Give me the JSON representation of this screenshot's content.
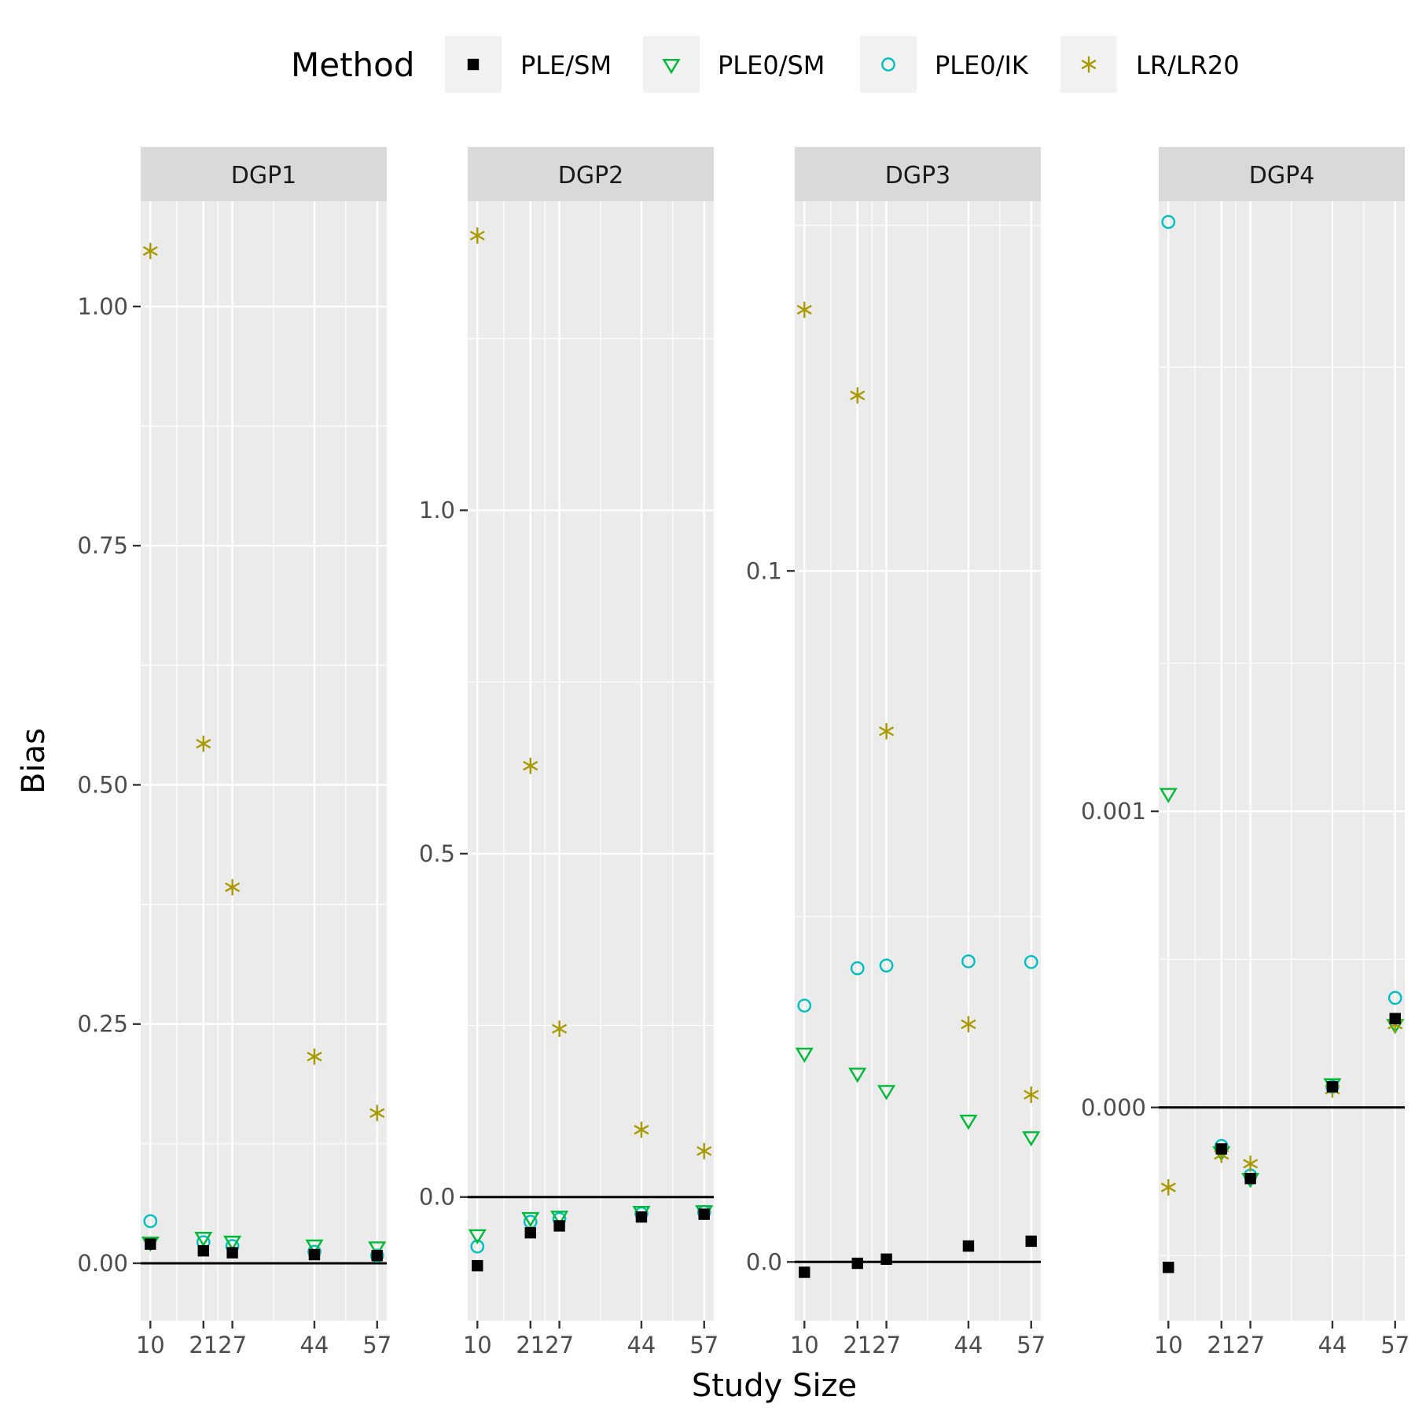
{
  "chart_data": {
    "type": "scatter",
    "xlabel": "Study Size",
    "ylabel": "Bias",
    "x_ticks": [
      10,
      21,
      27,
      44,
      57
    ],
    "x_tick_labels": [
      "10",
      "21",
      "27",
      "44",
      "57"
    ],
    "xlim": [
      8,
      59
    ],
    "reference_line_y": 0,
    "legend": {
      "title": "Method",
      "position": "top",
      "entries": [
        {
          "key": "ple_sm",
          "label": "PLE/SM",
          "shape": "square",
          "color": "#000000"
        },
        {
          "key": "ple0_sm",
          "label": "PLE0/SM",
          "shape": "triangle-down",
          "color": "#00BA38"
        },
        {
          "key": "ple0_ik",
          "label": "PLE0/IK",
          "shape": "circle",
          "color": "#00BFC4"
        },
        {
          "key": "lr_lr20",
          "label": "LR/LR20",
          "shape": "asterisk",
          "color": "#A89A00"
        }
      ]
    },
    "panels": [
      {
        "title": "DGP1",
        "ylim": [
          -0.06,
          1.11
        ],
        "y_ticks": [
          0,
          0.25,
          0.5,
          0.75,
          1
        ],
        "y_tick_labels": [
          "0.00",
          "0.25",
          "0.50",
          "0.75",
          "1.00"
        ],
        "series": {
          "ple_sm": [
            0.02,
            0.013,
            0.011,
            0.009,
            0.008
          ],
          "ple0_sm": [
            0.022,
            0.027,
            0.023,
            0.019,
            0.017
          ],
          "ple0_ik": [
            0.044,
            0.022,
            0.018,
            0.012,
            0.008
          ],
          "lr_lr20": [
            1.058,
            0.543,
            0.393,
            0.216,
            0.157
          ]
        }
      },
      {
        "title": "DGP2",
        "ylim": [
          -0.18,
          1.45
        ],
        "y_ticks": [
          0,
          0.5,
          1
        ],
        "y_tick_labels": [
          "0.0",
          "0.5",
          "1.0"
        ],
        "series": {
          "ple_sm": [
            -0.1,
            -0.052,
            -0.042,
            -0.029,
            -0.025
          ],
          "ple0_sm": [
            -0.055,
            -0.03,
            -0.028,
            -0.021,
            -0.02
          ],
          "ple0_ik": [
            -0.072,
            -0.036,
            -0.032,
            -0.024,
            -0.022
          ],
          "lr_lr20": [
            1.4,
            0.628,
            0.245,
            0.098,
            0.067
          ]
        }
      },
      {
        "title": "DGP3",
        "ylim": [
          -0.0085,
          0.1535
        ],
        "y_ticks": [
          0,
          0.1
        ],
        "y_tick_labels": [
          "0.0",
          "0.1"
        ],
        "series": {
          "ple_sm": [
            -0.0015,
            -0.0002,
            0.0004,
            0.0023,
            0.003
          ],
          "ple0_sm": [
            0.0302,
            0.0273,
            0.0248,
            0.0205,
            0.0181
          ],
          "ple0_ik": [
            0.0371,
            0.0425,
            0.0429,
            0.0435,
            0.0434
          ],
          "lr_lr20": [
            0.1378,
            0.1254,
            0.0768,
            0.0344,
            0.0242
          ]
        }
      },
      {
        "title": "DGP4",
        "ylim": [
          -0.00072,
          0.00306
        ],
        "y_ticks": [
          0,
          0.001
        ],
        "y_tick_labels": [
          "0.000",
          "0.001"
        ],
        "series": {
          "ple_sm": [
            -0.00054,
            -0.00014,
            -0.00024,
            7e-05,
            0.0003
          ],
          "ple0_sm": [
            0.00106,
            -0.00015,
            -0.00024,
            8e-05,
            0.00028
          ],
          "ple0_ik": [
            0.00299,
            -0.00013,
            -0.00023,
            7e-05,
            0.00037
          ],
          "lr_lr20": [
            -0.00027,
            -0.00016,
            -0.00019,
            6e-05,
            0.00028
          ]
        }
      }
    ]
  }
}
